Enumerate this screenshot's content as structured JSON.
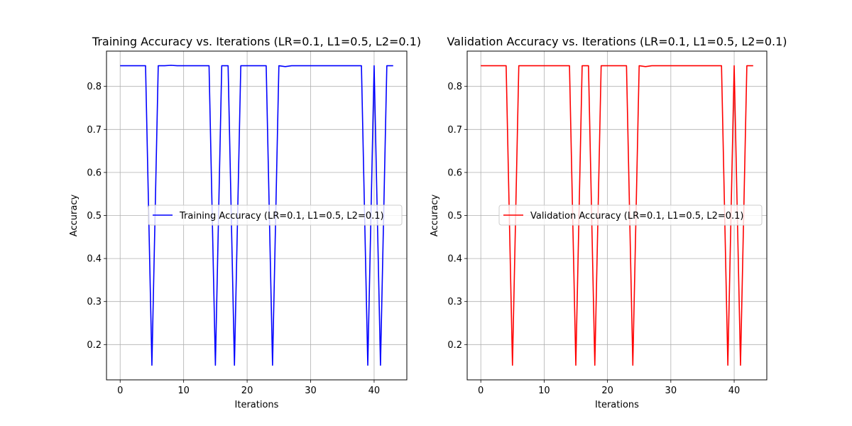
{
  "chart_data": [
    {
      "type": "line",
      "title": "Training Accuracy vs. Iterations (LR=0.1, L1=0.5, L2=0.1)",
      "xlabel": "Iterations",
      "ylabel": "Accuracy",
      "xlim": [
        -2.15,
        45.15
      ],
      "ylim": [
        0.118,
        0.882
      ],
      "xticks": [
        0,
        10,
        20,
        30,
        40
      ],
      "yticks": [
        0.2,
        0.3,
        0.4,
        0.5,
        0.6,
        0.7,
        0.8
      ],
      "grid": true,
      "legend_loc": "center right",
      "series": [
        {
          "name": "Training Accuracy (LR=0.1, L1=0.5, L2=0.1)",
          "color": "#0000ff",
          "x": [
            0,
            1,
            2,
            3,
            4,
            5,
            6,
            7,
            8,
            9,
            10,
            11,
            12,
            13,
            14,
            15,
            16,
            17,
            18,
            19,
            20,
            21,
            22,
            23,
            24,
            25,
            26,
            27,
            28,
            29,
            30,
            31,
            32,
            33,
            34,
            35,
            36,
            37,
            38,
            39,
            40,
            41,
            42,
            43
          ],
          "y": [
            0.848,
            0.848,
            0.848,
            0.848,
            0.848,
            0.152,
            0.848,
            0.848,
            0.849,
            0.848,
            0.848,
            0.848,
            0.848,
            0.848,
            0.848,
            0.152,
            0.848,
            0.848,
            0.152,
            0.848,
            0.848,
            0.848,
            0.848,
            0.848,
            0.152,
            0.848,
            0.846,
            0.848,
            0.848,
            0.848,
            0.848,
            0.848,
            0.848,
            0.848,
            0.848,
            0.848,
            0.848,
            0.848,
            0.848,
            0.152,
            0.848,
            0.152,
            0.848,
            0.848
          ]
        }
      ]
    },
    {
      "type": "line",
      "title": "Validation Accuracy vs. Iterations (LR=0.1, L1=0.5, L2=0.1)",
      "xlabel": "Iterations",
      "ylabel": "Accuracy",
      "xlim": [
        -2.15,
        45.15
      ],
      "ylim": [
        0.118,
        0.882
      ],
      "xticks": [
        0,
        10,
        20,
        30,
        40
      ],
      "yticks": [
        0.2,
        0.3,
        0.4,
        0.5,
        0.6,
        0.7,
        0.8
      ],
      "grid": true,
      "legend_loc": "center right",
      "series": [
        {
          "name": "Validation Accuracy (LR=0.1, L1=0.5, L2=0.1)",
          "color": "#ff0000",
          "x": [
            0,
            1,
            2,
            3,
            4,
            5,
            6,
            7,
            8,
            9,
            10,
            11,
            12,
            13,
            14,
            15,
            16,
            17,
            18,
            19,
            20,
            21,
            22,
            23,
            24,
            25,
            26,
            27,
            28,
            29,
            30,
            31,
            32,
            33,
            34,
            35,
            36,
            37,
            38,
            39,
            40,
            41,
            42,
            43
          ],
          "y": [
            0.848,
            0.848,
            0.848,
            0.848,
            0.848,
            0.152,
            0.848,
            0.848,
            0.848,
            0.848,
            0.848,
            0.848,
            0.848,
            0.848,
            0.848,
            0.152,
            0.848,
            0.848,
            0.152,
            0.848,
            0.848,
            0.848,
            0.848,
            0.848,
            0.152,
            0.848,
            0.846,
            0.848,
            0.848,
            0.848,
            0.848,
            0.848,
            0.848,
            0.848,
            0.848,
            0.848,
            0.848,
            0.848,
            0.848,
            0.152,
            0.848,
            0.152,
            0.848,
            0.848
          ]
        }
      ]
    }
  ]
}
